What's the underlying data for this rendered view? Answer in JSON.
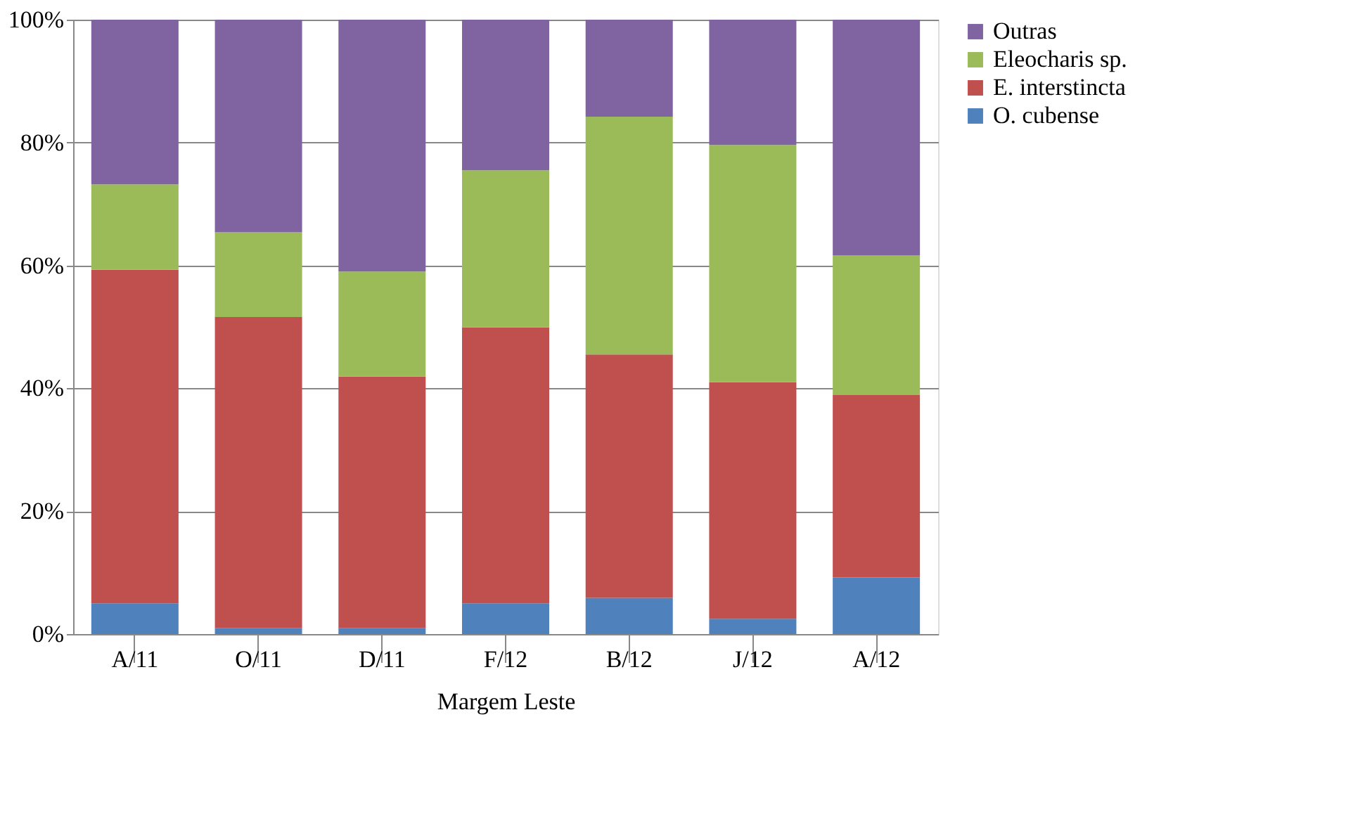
{
  "chart_data": {
    "type": "bar",
    "stacked": true,
    "xlabel": "Margem Leste",
    "categories": [
      "A/11",
      "O/11",
      "D/11",
      "F/12",
      "B/12",
      "J/12",
      "A/12"
    ],
    "series": [
      {
        "name": "O. cubense",
        "color": "#4f81bd",
        "values": [
          5,
          1,
          1,
          5,
          5.9,
          2.5,
          9.2
        ]
      },
      {
        "name": "E. interstincta",
        "color": "#c0504d",
        "values": [
          54.3,
          50.6,
          40.9,
          44.9,
          39.6,
          38.5,
          29.7
        ]
      },
      {
        "name": "Eleocharis sp.",
        "color": "#9bbb59",
        "values": [
          13.9,
          13.8,
          17.1,
          25.6,
          38.7,
          38.6,
          22.7
        ]
      },
      {
        "name": "Outras",
        "color": "#8064a2",
        "values": [
          26.8,
          34.6,
          41,
          24.5,
          15.8,
          20.4,
          38.4
        ]
      }
    ],
    "ylim": [
      0,
      100
    ],
    "yticks": [
      {
        "value": 0,
        "label": "0%"
      },
      {
        "value": 20,
        "label": "20%"
      },
      {
        "value": 40,
        "label": "40%"
      },
      {
        "value": 60,
        "label": "60%"
      },
      {
        "value": 80,
        "label": "80%"
      },
      {
        "value": 100,
        "label": "100%"
      }
    ],
    "grid": "y",
    "legend": "right"
  }
}
